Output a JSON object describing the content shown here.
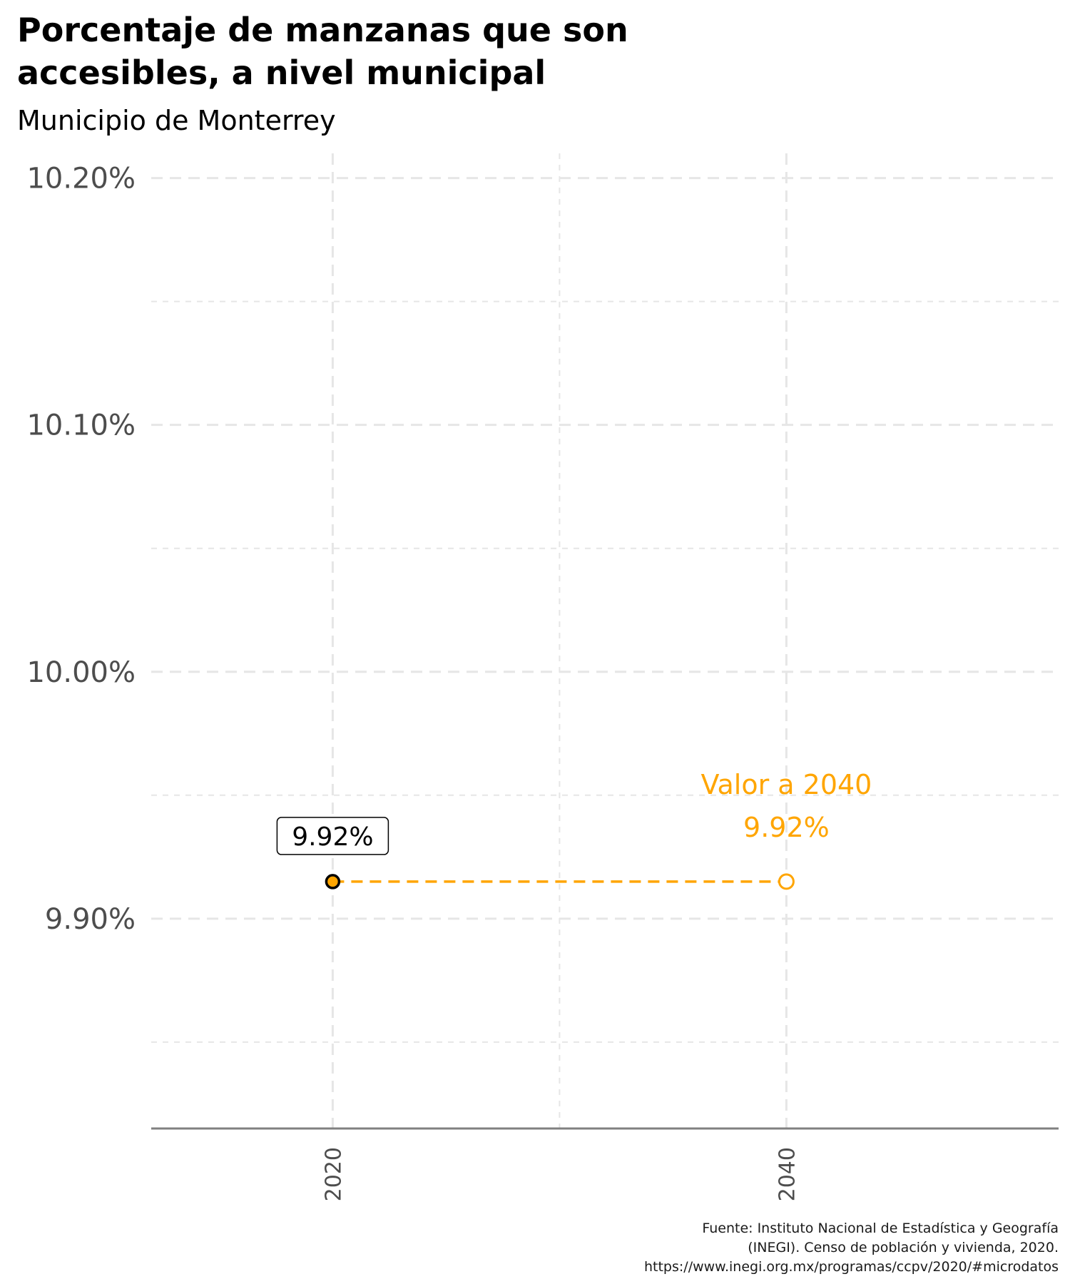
{
  "chart_data": {
    "type": "line",
    "title_lines": [
      "Porcentaje de manzanas que son",
      "accesibles, a nivel municipal"
    ],
    "subtitle": "Municipio de Monterrey",
    "x": [
      2020,
      2040
    ],
    "x_ticks": [
      "2020",
      "2040"
    ],
    "xlim": [
      2012,
      2052
    ],
    "y_ticks": [
      9.9,
      10.0,
      10.1,
      10.2
    ],
    "y_tick_labels": [
      "9.90%",
      "10.00%",
      "10.10%",
      "10.20%"
    ],
    "ylim": [
      9.815,
      10.21
    ],
    "grid": true,
    "series": [
      {
        "values": [
          9.915,
          9.915
        ],
        "color": "#FFA500"
      }
    ],
    "annotations": {
      "start_label": "9.92%",
      "end_title": "Valor a 2040",
      "end_value": "9.92%"
    },
    "caption_lines": [
      "Fuente: Instituto Nacional de Estadística y Geografía",
      "(INEGI). Censo de población y vivienda, 2020.",
      "https://www.inegi.org.mx/programas/ccpv/2020/#microdatos"
    ],
    "colors": {
      "accent": "#FFA500",
      "grid": "#e6e6e6",
      "axis": "#808080"
    }
  }
}
